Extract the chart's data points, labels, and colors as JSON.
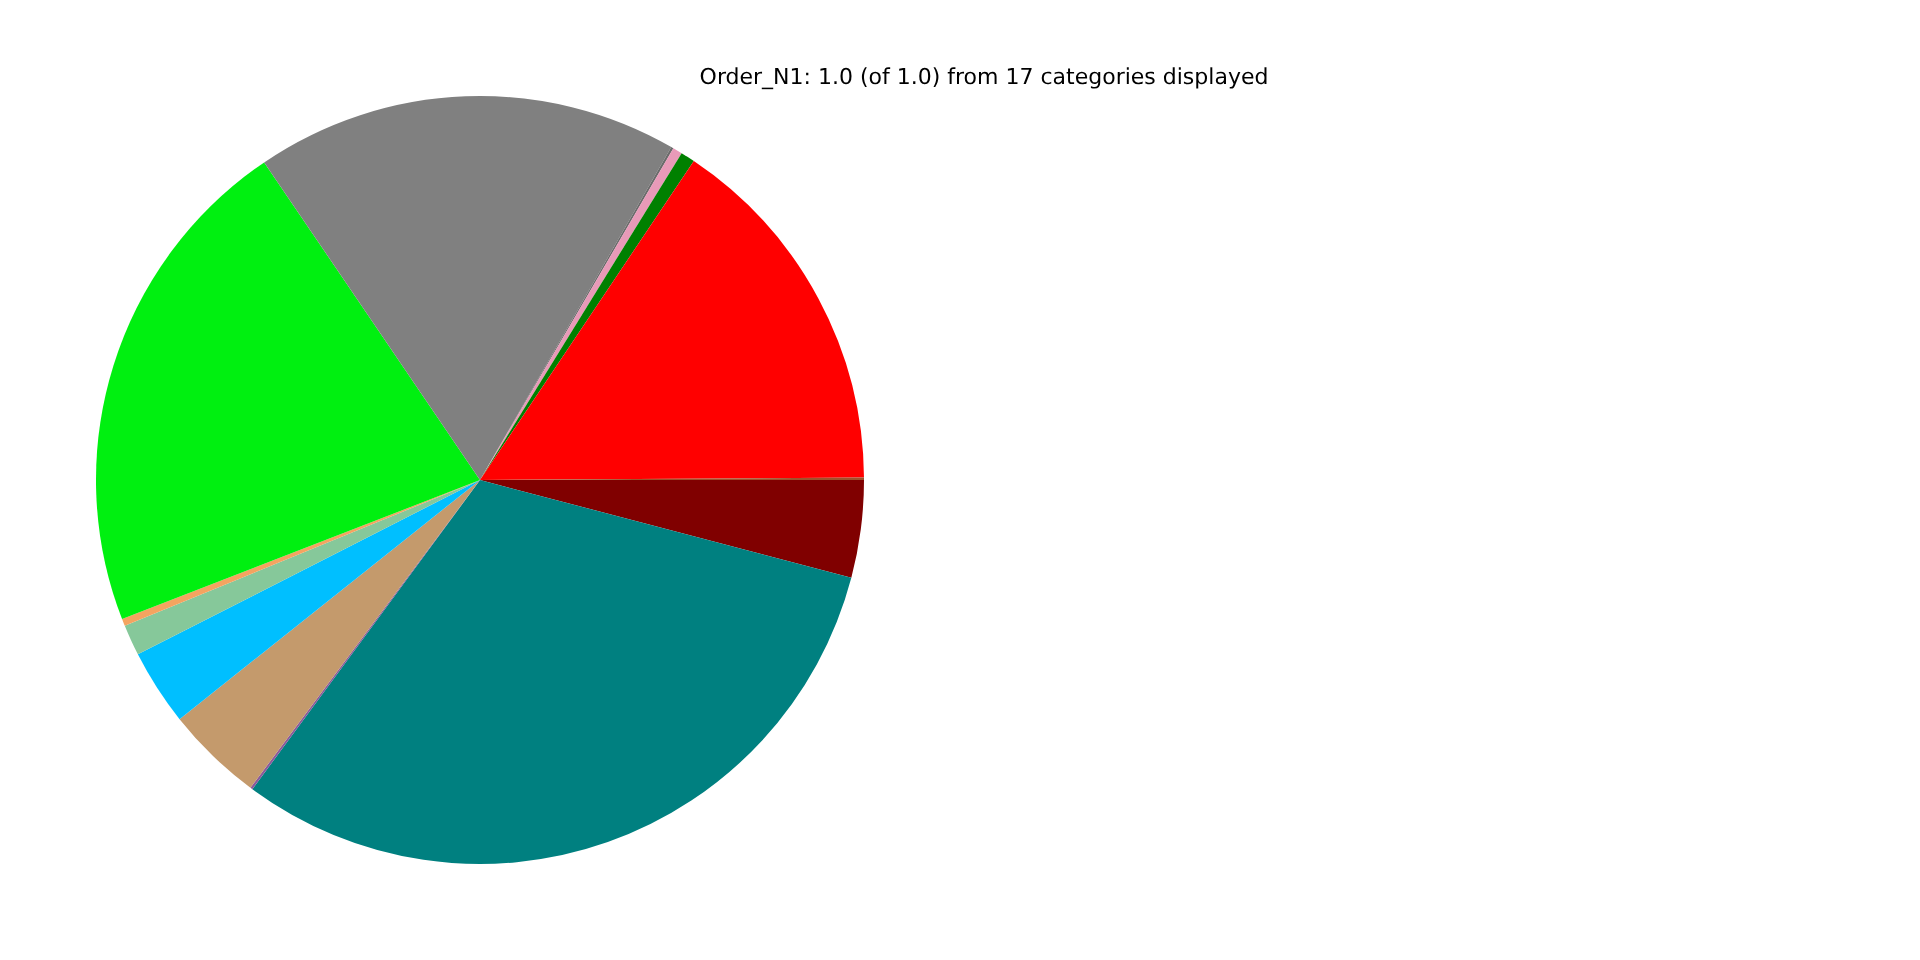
{
  "chart_data": {
    "type": "pie",
    "title": "Order_N1: 1.0 (of 1.0) from 17 categories displayed",
    "categories": [
      null,
      null,
      null,
      null,
      null,
      null,
      null,
      null,
      null,
      null,
      null,
      null,
      null,
      null
    ],
    "values": [
      4.1,
      31.0,
      0.1,
      4.1,
      3.2,
      1.3,
      0.3,
      21.4,
      17.8,
      0.1,
      0.4,
      0.6,
      15.5,
      0.1
    ],
    "colors": [
      "#800000",
      "#008080",
      "#8b5a9b",
      "#c49a6c",
      "#00bfff",
      "#86c89a",
      "#f4a460",
      "#00f010",
      "#808080",
      "#6b6b6b",
      "#e89ab8",
      "#008000",
      "#ff0000",
      "#a0522d"
    ],
    "legend": false
  }
}
